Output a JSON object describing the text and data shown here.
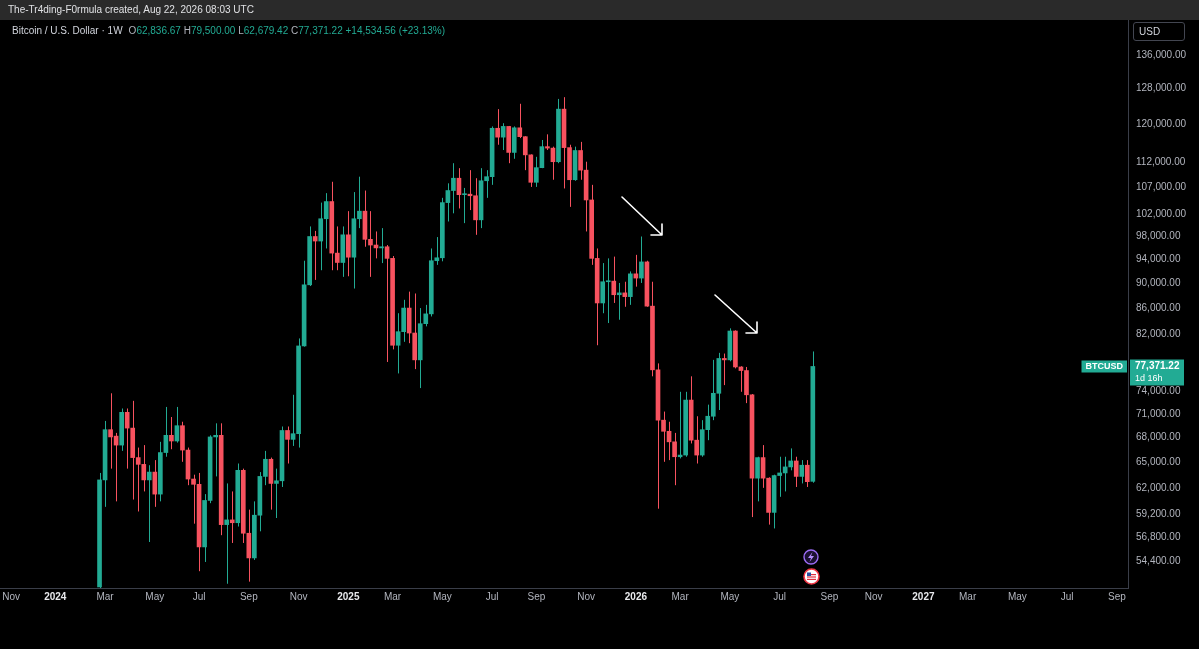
{
  "chart_data": {
    "type": "candlestick",
    "title": "Bitcoin / U.S. Dollar · 1W",
    "subtitle": "O62,836.67 H79,500.00 L62,679.42 C77,371.22 +14,534.56 (+23.13%)",
    "ylabel": "USD",
    "annotations": [
      "The-Tr4ding-F0rmula created, Aug 22, 2026 08:03 UTC",
      "BTCUSD",
      "77,371.22",
      "1d 16h"
    ],
    "x": [
      "2024-02-26",
      "2024-03-04",
      "2024-03-11",
      "2024-03-18",
      "2024-03-25",
      "2024-04-01",
      "2024-04-08",
      "2024-04-15",
      "2024-04-22",
      "2024-04-29",
      "2024-05-06",
      "2024-05-13",
      "2024-05-20",
      "2024-05-27",
      "2024-06-03",
      "2024-06-10",
      "2024-06-17",
      "2024-06-24",
      "2024-07-01",
      "2024-07-08",
      "2024-07-15",
      "2024-07-22",
      "2024-07-29",
      "2024-08-05",
      "2024-08-12",
      "2024-08-19",
      "2024-08-26",
      "2024-09-02",
      "2024-09-09",
      "2024-09-16",
      "2024-09-23",
      "2024-09-30",
      "2024-10-07",
      "2024-10-14",
      "2024-10-21",
      "2024-10-28",
      "2024-11-04",
      "2024-11-11",
      "2024-11-18",
      "2024-11-25",
      "2024-12-02",
      "2024-12-09",
      "2024-12-16",
      "2024-12-23",
      "2024-12-30",
      "2025-01-06",
      "2025-01-13",
      "2025-01-20",
      "2025-01-27",
      "2025-02-03",
      "2025-02-10",
      "2025-02-17",
      "2025-02-24",
      "2025-03-03",
      "2025-03-10",
      "2025-03-17",
      "2025-03-24",
      "2025-03-31",
      "2025-04-07",
      "2025-04-14",
      "2025-04-21",
      "2025-04-28",
      "2025-05-05",
      "2025-05-12",
      "2025-05-19",
      "2025-05-26",
      "2025-06-02",
      "2025-06-09",
      "2025-06-16",
      "2025-06-23",
      "2025-06-30",
      "2025-07-07",
      "2025-07-14",
      "2025-07-21",
      "2025-07-28",
      "2025-08-04",
      "2025-08-11",
      "2025-08-18",
      "2025-08-25",
      "2025-09-01",
      "2025-09-08",
      "2025-09-15",
      "2025-09-22",
      "2025-09-29",
      "2025-10-06",
      "2025-10-13",
      "2025-10-20",
      "2025-10-27",
      "2025-11-03",
      "2025-11-10",
      "2025-11-17",
      "2025-11-24",
      "2025-12-01",
      "2025-12-08",
      "2025-12-15",
      "2025-12-22",
      "2025-12-29",
      "2026-01-05",
      "2026-01-12",
      "2026-01-19",
      "2026-01-26",
      "2026-02-02",
      "2026-02-09",
      "2026-02-16",
      "2026-02-23",
      "2026-03-02",
      "2026-03-09",
      "2026-03-16",
      "2026-03-23",
      "2026-03-30",
      "2026-04-06",
      "2026-04-13",
      "2026-04-20",
      "2026-04-27",
      "2026-05-04",
      "2026-05-11",
      "2026-05-18",
      "2026-05-25",
      "2026-06-01",
      "2026-06-08",
      "2026-06-15",
      "2026-06-22",
      "2026-06-29",
      "2026-07-06",
      "2026-07-13",
      "2026-07-20",
      "2026-07-27",
      "2026-08-03",
      "2026-08-10",
      "2026-08-17"
    ],
    "ohlc": [
      [
        51900,
        63800,
        51800,
        63000
      ],
      [
        63000,
        70100,
        60000,
        69000
      ],
      [
        69000,
        73700,
        64300,
        68100
      ],
      [
        68200,
        68600,
        60600,
        67100
      ],
      [
        67100,
        71700,
        66400,
        71200
      ],
      [
        71200,
        71700,
        64300,
        69200
      ],
      [
        69200,
        72700,
        60800,
        65600
      ],
      [
        65600,
        66800,
        59500,
        64800
      ],
      [
        64800,
        67100,
        61700,
        63000
      ],
      [
        63000,
        64700,
        56300,
        63900
      ],
      [
        63900,
        65300,
        60000,
        61400
      ],
      [
        61400,
        67500,
        60600,
        66200
      ],
      [
        66200,
        71900,
        65700,
        68300
      ],
      [
        68300,
        70600,
        66600,
        67600
      ],
      [
        67600,
        71900,
        67400,
        69500
      ],
      [
        69500,
        70000,
        65100,
        66500
      ],
      [
        66500,
        66800,
        62400,
        63100
      ],
      [
        63100,
        63600,
        58200,
        62500
      ],
      [
        62500,
        63800,
        53400,
        55800
      ],
      [
        55800,
        61400,
        54300,
        60700
      ],
      [
        60700,
        68300,
        60400,
        68100
      ],
      [
        68100,
        69800,
        63400,
        68300
      ],
      [
        68300,
        69800,
        57000,
        58100
      ],
      [
        58100,
        62600,
        52200,
        58600
      ],
      [
        58600,
        61700,
        56200,
        58300
      ],
      [
        58300,
        64900,
        57900,
        64100
      ],
      [
        64100,
        64300,
        56200,
        57200
      ],
      [
        57200,
        59700,
        52400,
        54700
      ],
      [
        54700,
        60600,
        54500,
        59100
      ],
      [
        59100,
        63900,
        57400,
        63400
      ],
      [
        63400,
        66400,
        62400,
        65400
      ],
      [
        65400,
        65600,
        59700,
        62600
      ],
      [
        62600,
        64300,
        58800,
        62900
      ],
      [
        62900,
        69400,
        62200,
        68900
      ],
      [
        68900,
        69400,
        64900,
        67800
      ],
      [
        67800,
        73500,
        67000,
        68500
      ],
      [
        68500,
        81400,
        66800,
        80300
      ],
      [
        80300,
        93700,
        80200,
        89700
      ],
      [
        89700,
        99700,
        89500,
        97900
      ],
      [
        97900,
        98900,
        90500,
        97100
      ],
      [
        97100,
        104100,
        92100,
        101100
      ],
      [
        101100,
        105900,
        95800,
        104300
      ],
      [
        104300,
        108100,
        92100,
        95000
      ],
      [
        95000,
        99700,
        92100,
        93400
      ],
      [
        93400,
        99700,
        91000,
        98200
      ],
      [
        98200,
        102500,
        91100,
        94300
      ],
      [
        94300,
        106100,
        89100,
        101100
      ],
      [
        101100,
        109100,
        99400,
        102500
      ],
      [
        102500,
        106400,
        96100,
        97400
      ],
      [
        97400,
        102500,
        91000,
        96400
      ],
      [
        96400,
        98800,
        94100,
        95900
      ],
      [
        95900,
        99400,
        93300,
        96100
      ],
      [
        96100,
        96400,
        78000,
        94100
      ],
      [
        94100,
        94500,
        79800,
        80400
      ],
      [
        80400,
        85200,
        76400,
        82400
      ],
      [
        82400,
        87300,
        80900,
        86000
      ],
      [
        86000,
        88600,
        80700,
        82200
      ],
      [
        82200,
        88300,
        77000,
        78300
      ],
      [
        78300,
        86000,
        74400,
        83600
      ],
      [
        83600,
        86500,
        83200,
        85100
      ],
      [
        85100,
        95800,
        84700,
        93700
      ],
      [
        93700,
        97800,
        93000,
        94200
      ],
      [
        94200,
        105000,
        93600,
        104100
      ],
      [
        104100,
        107800,
        100600,
        106400
      ],
      [
        106400,
        111800,
        102100,
        108800
      ],
      [
        108800,
        110800,
        103000,
        105600
      ],
      [
        105600,
        106900,
        100300,
        105700
      ],
      [
        105700,
        110400,
        102700,
        105400
      ],
      [
        105400,
        108800,
        98200,
        100900
      ],
      [
        100900,
        110800,
        99400,
        108300
      ],
      [
        108300,
        110400,
        105000,
        109100
      ],
      [
        109100,
        119500,
        107500,
        119100
      ],
      [
        119100,
        123300,
        115600,
        117200
      ],
      [
        117200,
        120200,
        114500,
        119500
      ],
      [
        119500,
        119600,
        111800,
        114000
      ],
      [
        114000,
        119500,
        112700,
        119200
      ],
      [
        119200,
        124500,
        117000,
        117300
      ],
      [
        117300,
        117400,
        110400,
        113500
      ],
      [
        113500,
        113600,
        107100,
        108000
      ],
      [
        108000,
        113100,
        107100,
        110900
      ],
      [
        110900,
        116600,
        110800,
        115200
      ],
      [
        115200,
        117800,
        114500,
        114900
      ],
      [
        114900,
        115200,
        108500,
        112100
      ],
      [
        112100,
        125600,
        111800,
        123300
      ],
      [
        123300,
        126000,
        106800,
        115000
      ],
      [
        115000,
        115600,
        103300,
        108500
      ],
      [
        108500,
        115200,
        108300,
        114400
      ],
      [
        114400,
        116200,
        108500,
        110400
      ],
      [
        110400,
        112100,
        98800,
        104600
      ],
      [
        104600,
        107500,
        93000,
        94100
      ],
      [
        94100,
        95800,
        80400,
        86800
      ],
      [
        86800,
        93300,
        85200,
        90200
      ],
      [
        90200,
        94100,
        83700,
        90300
      ],
      [
        90300,
        94400,
        86800,
        88100
      ],
      [
        88100,
        90000,
        84200,
        88400
      ],
      [
        88400,
        90200,
        86200,
        87800
      ],
      [
        87800,
        91900,
        86500,
        91500
      ],
      [
        91500,
        94700,
        89400,
        90800
      ],
      [
        90800,
        97900,
        90000,
        93500
      ],
      [
        93500,
        93700,
        86200,
        86300
      ],
      [
        86300,
        90200,
        76000,
        76900
      ],
      [
        76900,
        77800,
        59800,
        70200
      ],
      [
        70200,
        71300,
        65100,
        68800
      ],
      [
        68800,
        70000,
        65300,
        67500
      ],
      [
        67500,
        68600,
        62400,
        65700
      ],
      [
        65700,
        73900,
        65500,
        65900
      ],
      [
        65900,
        73900,
        65700,
        72800
      ],
      [
        72800,
        76000,
        67300,
        67700
      ],
      [
        67700,
        70700,
        64900,
        65900
      ],
      [
        65900,
        70200,
        65700,
        69000
      ],
      [
        69000,
        72200,
        67700,
        70700
      ],
      [
        70700,
        78300,
        70200,
        73700
      ],
      [
        73700,
        79300,
        71500,
        78500
      ],
      [
        78500,
        79200,
        74800,
        78300
      ],
      [
        78300,
        82900,
        78100,
        82500
      ],
      [
        82500,
        82600,
        77100,
        77300
      ],
      [
        77300,
        77400,
        73900,
        76800
      ],
      [
        76800,
        77300,
        72400,
        73500
      ],
      [
        73500,
        73600,
        58900,
        63200
      ],
      [
        63200,
        65700,
        60600,
        65600
      ],
      [
        65600,
        67100,
        62100,
        63200
      ],
      [
        63200,
        63300,
        58100,
        59400
      ],
      [
        59400,
        63600,
        57700,
        63500
      ],
      [
        63500,
        65700,
        61100,
        63800
      ],
      [
        63800,
        65700,
        61700,
        64500
      ],
      [
        64500,
        66700,
        64100,
        65200
      ],
      [
        65200,
        65700,
        62200,
        63400
      ],
      [
        63400,
        65300,
        62600,
        64700
      ],
      [
        64700,
        65300,
        62200,
        62800
      ],
      [
        62836.67,
        79500,
        62679.42,
        77371.22
      ]
    ],
    "colors": [
      "#22ab94",
      "#22ab94",
      "#f7525f",
      "#f7525f",
      "#22ab94",
      "#f7525f",
      "#f7525f",
      "#f7525f",
      "#f7525f",
      "#22ab94",
      "#f7525f",
      "#22ab94",
      "#22ab94",
      "#f7525f",
      "#22ab94",
      "#f7525f",
      "#f7525f",
      "#f7525f",
      "#f7525f",
      "#22ab94",
      "#22ab94",
      "#22ab94",
      "#f7525f",
      "#22ab94",
      "#f7525f",
      "#22ab94",
      "#f7525f",
      "#f7525f",
      "#22ab94",
      "#22ab94",
      "#22ab94",
      "#f7525f",
      "#22ab94",
      "#22ab94",
      "#f7525f",
      "#22ab94",
      "#22ab94",
      "#22ab94",
      "#22ab94",
      "#f7525f",
      "#22ab94",
      "#22ab94",
      "#f7525f",
      "#f7525f",
      "#22ab94",
      "#f7525f",
      "#22ab94",
      "#22ab94",
      "#f7525f",
      "#f7525f",
      "#f7525f",
      "#22ab94",
      "#f7525f",
      "#f7525f",
      "#22ab94",
      "#22ab94",
      "#f7525f",
      "#f7525f",
      "#22ab94",
      "#22ab94",
      "#22ab94",
      "#22ab94",
      "#22ab94",
      "#22ab94",
      "#22ab94",
      "#f7525f",
      "#22ab94",
      "#f7525f",
      "#f7525f",
      "#22ab94",
      "#22ab94",
      "#22ab94",
      "#f7525f",
      "#22ab94",
      "#f7525f",
      "#22ab94",
      "#f7525f",
      "#f7525f",
      "#f7525f",
      "#22ab94",
      "#22ab94",
      "#f7525f",
      "#f7525f",
      "#22ab94",
      "#f7525f",
      "#f7525f",
      "#22ab94",
      "#f7525f",
      "#f7525f",
      "#f7525f",
      "#f7525f",
      "#22ab94",
      "#22ab94",
      "#f7525f",
      "#22ab94",
      "#f7525f",
      "#22ab94",
      "#f7525f",
      "#22ab94",
      "#f7525f",
      "#f7525f",
      "#f7525f",
      "#f7525f",
      "#f7525f",
      "#f7525f",
      "#22ab94",
      "#22ab94",
      "#f7525f",
      "#f7525f",
      "#22ab94",
      "#22ab94",
      "#22ab94",
      "#22ab94",
      "#f7525f",
      "#22ab94",
      "#f7525f",
      "#f7525f",
      "#f7525f",
      "#f7525f",
      "#22ab94",
      "#f7525f",
      "#f7525f",
      "#22ab94",
      "#22ab94",
      "#22ab94",
      "#22ab94",
      "#f7525f",
      "#22ab94",
      "#f7525f",
      "#22ab94"
    ],
    "xlim": [
      "2023-10-23",
      "2027-09-20"
    ],
    "xticks": [
      {
        "value": "2023-11-06",
        "label": "Nov"
      },
      {
        "value": "2024-01-01",
        "label": "2024"
      },
      {
        "value": "2024-03-04",
        "label": "Mar"
      },
      {
        "value": "2024-05-06",
        "label": "May"
      },
      {
        "value": "2024-07-01",
        "label": "Jul"
      },
      {
        "value": "2024-09-02",
        "label": "Sep"
      },
      {
        "value": "2024-11-04",
        "label": "Nov"
      },
      {
        "value": "2025-01-06",
        "label": "2025"
      },
      {
        "value": "2025-03-03",
        "label": "Mar"
      },
      {
        "value": "2025-05-05",
        "label": "May"
      },
      {
        "value": "2025-07-07",
        "label": "Jul"
      },
      {
        "value": "2025-09-01",
        "label": "Sep"
      },
      {
        "value": "2025-11-03",
        "label": "Nov"
      },
      {
        "value": "2026-01-05",
        "label": "2026"
      },
      {
        "value": "2026-03-02",
        "label": "Mar"
      },
      {
        "value": "2026-05-04",
        "label": "May"
      },
      {
        "value": "2026-07-06",
        "label": "Jul"
      },
      {
        "value": "2026-09-07",
        "label": "Sep"
      },
      {
        "value": "2026-11-02",
        "label": "Nov"
      },
      {
        "value": "2027-01-04",
        "label": "2027"
      },
      {
        "value": "2027-03-01",
        "label": "Mar"
      },
      {
        "value": "2027-05-03",
        "label": "May"
      },
      {
        "value": "2027-07-05",
        "label": "Jul"
      },
      {
        "value": "2027-09-06",
        "label": "Sep"
      }
    ],
    "ylim": [
      51800,
      144900
    ],
    "yticks": [
      {
        "value": 54400,
        "label": "54,400.00"
      },
      {
        "value": 56800,
        "label": "56,800.00"
      },
      {
        "value": 59200,
        "label": "59,200.00"
      },
      {
        "value": 62000,
        "label": "62,000.00"
      },
      {
        "value": 65000,
        "label": "65,000.00"
      },
      {
        "value": 68000,
        "label": "68,000.00"
      },
      {
        "value": 71000,
        "label": "71,000.00"
      },
      {
        "value": 74000,
        "label": "74,000.00"
      },
      {
        "value": 82000,
        "label": "82,000.00"
      },
      {
        "value": 86000,
        "label": "86,000.00"
      },
      {
        "value": 90000,
        "label": "90,000.00"
      },
      {
        "value": 94000,
        "label": "94,000.00"
      },
      {
        "value": 98000,
        "label": "98,000.00"
      },
      {
        "value": 102000,
        "label": "102,000.00"
      },
      {
        "value": 107000,
        "label": "107,000.00"
      },
      {
        "value": 112000,
        "label": "112,000.00"
      },
      {
        "value": 120000,
        "label": "120,000.00"
      },
      {
        "value": 128000,
        "label": "128,000.00"
      },
      {
        "value": 136000,
        "label": "136,000.00"
      }
    ],
    "log": true
  }
}
